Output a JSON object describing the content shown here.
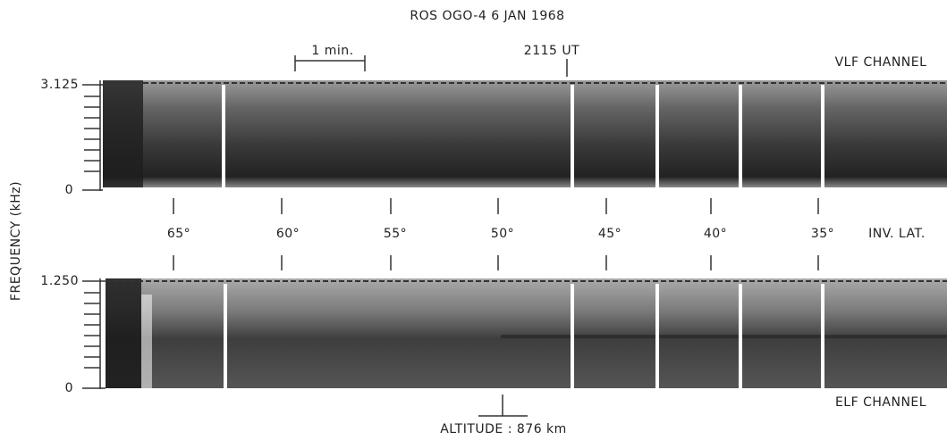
{
  "header": {
    "title": "ROS OGO-4 6 JAN 1968",
    "scale_bar": "1 min.",
    "time_marker": "2115 UT"
  },
  "y_axis_label": "FREQUENCY (kHz)",
  "vlf_panel": {
    "name": "VLF CHANNEL",
    "top_label": "3.125",
    "bottom_label": "0"
  },
  "latitude_scale": {
    "labels": [
      "65°",
      "60°",
      "55°",
      "50°",
      "45°",
      "40°",
      "35°"
    ],
    "name": "INV. LAT."
  },
  "elf_panel": {
    "name": "ELF CHANNEL",
    "top_label": "1.250",
    "bottom_label": "0"
  },
  "footer": {
    "altitude": "ALTITUDE : 876 km"
  }
}
